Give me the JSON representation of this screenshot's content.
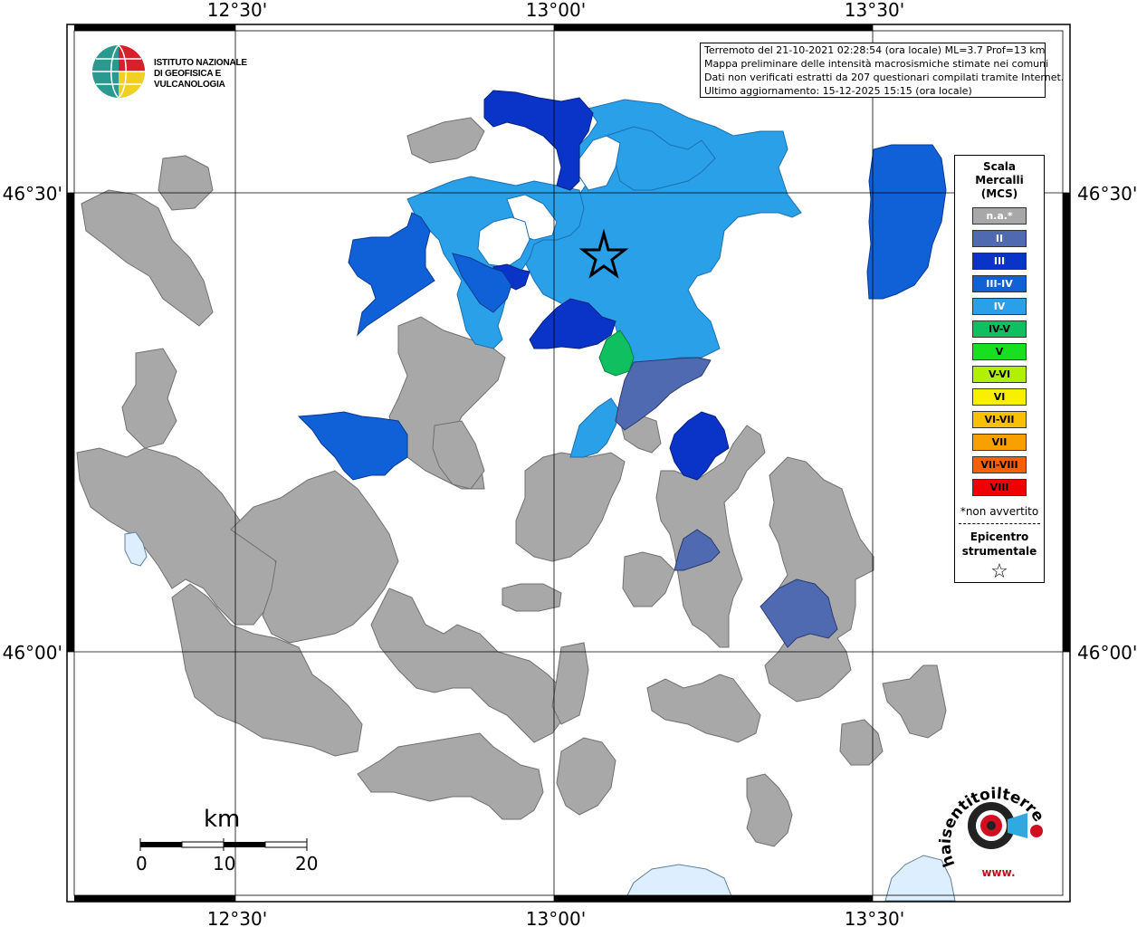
{
  "info": {
    "line1": "Terremoto del 21-10-2021 02:28:54 (ora locale) ML=3.7 Prof=13 km",
    "line2": "Mappa preliminare delle intensità macrosismiche stimate nei comuni",
    "line3": "Dati non verificati estratti da 207 questionari compilati tramite Internet.",
    "line4": "Ultimo aggiornamento: 15-12-2025 15:15 (ora locale)"
  },
  "logo": {
    "line1": "ISTITUTO NAZIONALE",
    "line2": "DI GEOFISICA E VULCANOLOGIA"
  },
  "axes": {
    "top": [
      "12°30'",
      "13°00'",
      "13°30'"
    ],
    "bottom": [
      "12°30'",
      "13°00'",
      "13°30'"
    ],
    "left": [
      "46°30'",
      "46°00'"
    ],
    "right": [
      "46°30'",
      "46°00'"
    ]
  },
  "legend": {
    "title_1": "Scala",
    "title_2": "Mercalli",
    "title_3": "(MCS)",
    "items": [
      {
        "label": "n.a.*",
        "color": "#a8a8a8"
      },
      {
        "label": "II",
        "color": "#4f6ab0"
      },
      {
        "label": "III",
        "color": "#0a34c8"
      },
      {
        "label": "III-IV",
        "color": "#1060d8"
      },
      {
        "label": "IV",
        "color": "#2aa0e8"
      },
      {
        "label": "IV-V",
        "color": "#10c060"
      },
      {
        "label": "V",
        "color": "#18e020"
      },
      {
        "label": "V-VI",
        "color": "#b0f000"
      },
      {
        "label": "VI",
        "color": "#f8f000"
      },
      {
        "label": "VI-VII",
        "color": "#f8c000"
      },
      {
        "label": "VII",
        "color": "#f8a000"
      },
      {
        "label": "VII-VIII",
        "color": "#f86000"
      },
      {
        "label": "VIII",
        "color": "#f00000"
      }
    ],
    "note": "*non avvertito",
    "epi_1": "Epicentro",
    "epi_2": "strumentale",
    "star": "☆"
  },
  "scale": {
    "title": "km",
    "ticks": [
      "0",
      "10",
      "20"
    ]
  },
  "hai_logo": {
    "text": "haisentitoilterremoto.it",
    "www": "www."
  }
}
